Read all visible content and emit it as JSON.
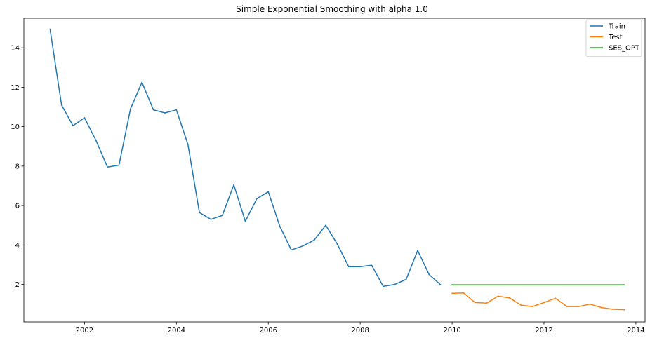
{
  "chart_data": {
    "type": "line",
    "title": "Simple Exponential Smoothing with alpha 1.0",
    "xlabel": "",
    "ylabel": "",
    "xlim": [
      2000.68,
      2014.2
    ],
    "ylim": [
      0.1,
      15.5
    ],
    "x_ticks": [
      2002,
      2004,
      2006,
      2008,
      2010,
      2012,
      2014
    ],
    "y_ticks": [
      2,
      4,
      6,
      8,
      10,
      12,
      14
    ],
    "grid": false,
    "legend_position": "top-right",
    "series": [
      {
        "name": "Train",
        "color": "#1f77b4",
        "x": [
          2001.25,
          2001.5,
          2001.75,
          2002.0,
          2002.25,
          2002.5,
          2002.75,
          2003.0,
          2003.25,
          2003.5,
          2003.75,
          2004.0,
          2004.25,
          2004.5,
          2004.75,
          2005.0,
          2005.25,
          2005.5,
          2005.75,
          2006.0,
          2006.25,
          2006.5,
          2006.75,
          2007.0,
          2007.25,
          2007.5,
          2007.75,
          2008.0,
          2008.25,
          2008.5,
          2008.75,
          2009.0,
          2009.25,
          2009.5,
          2009.75
        ],
        "y": [
          14.95,
          11.1,
          10.05,
          10.45,
          9.3,
          7.95,
          8.05,
          10.9,
          12.25,
          10.85,
          10.7,
          10.85,
          9.1,
          5.65,
          5.3,
          5.5,
          7.05,
          5.2,
          6.35,
          6.7,
          4.95,
          3.75,
          3.95,
          4.25,
          5.0,
          4.05,
          2.9,
          2.9,
          2.97,
          1.9,
          2.0,
          2.25,
          3.72,
          2.5,
          1.98
        ]
      },
      {
        "name": "Test",
        "color": "#ff7f0e",
        "x": [
          2010.0,
          2010.25,
          2010.5,
          2010.75,
          2011.0,
          2011.25,
          2011.5,
          2011.75,
          2012.0,
          2012.25,
          2012.5,
          2012.75,
          2013.0,
          2013.25,
          2013.5,
          2013.75
        ],
        "y": [
          1.55,
          1.57,
          1.08,
          1.05,
          1.4,
          1.32,
          0.95,
          0.88,
          1.08,
          1.3,
          0.88,
          0.88,
          1.0,
          0.83,
          0.74,
          0.72
        ]
      },
      {
        "name": "SES_OPT",
        "color": "#2ca02c",
        "x": [
          2010.0,
          2013.75
        ],
        "y": [
          1.98,
          1.98
        ]
      }
    ]
  }
}
